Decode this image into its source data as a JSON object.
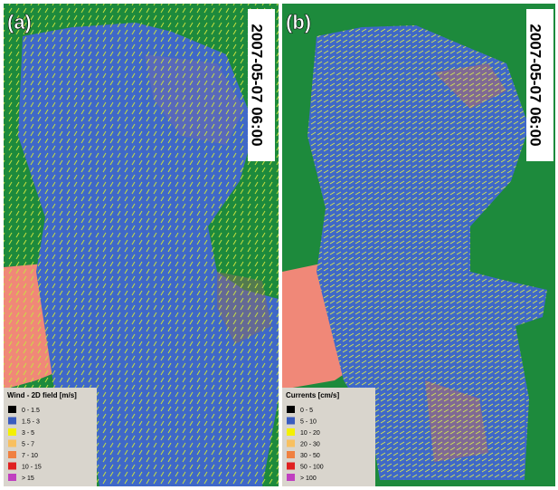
{
  "panels": [
    {
      "label": "(a)",
      "timestamp": "2007-05-07 06:00",
      "legend": {
        "title": "Wind - 2D field [m/s]",
        "items": [
          {
            "label": "0 - 1.5",
            "color": "#000000"
          },
          {
            "label": "1.5 - 3",
            "color": "#3a5cc0"
          },
          {
            "label": "3 - 5",
            "color": "#f4f000"
          },
          {
            "label": "5 - 7",
            "color": "#f8c060"
          },
          {
            "label": "7 - 10",
            "color": "#f08040"
          },
          {
            "label": "10 - 15",
            "color": "#e02020"
          },
          {
            "label": "> 15",
            "color": "#c040c0"
          }
        ]
      }
    },
    {
      "label": "(b)",
      "timestamp": "2007-05-07 06:00",
      "legend": {
        "title": "Currents [cm/s]",
        "items": [
          {
            "label": "0 - 5",
            "color": "#000000"
          },
          {
            "label": "5 - 10",
            "color": "#3a5cc0"
          },
          {
            "label": "10 - 20",
            "color": "#f4f000"
          },
          {
            "label": "20 - 30",
            "color": "#f8c060"
          },
          {
            "label": "30 - 50",
            "color": "#f08040"
          },
          {
            "label": "50 - 100",
            "color": "#e02020"
          },
          {
            "label": "> 100",
            "color": "#c040c0"
          }
        ]
      }
    }
  ]
}
